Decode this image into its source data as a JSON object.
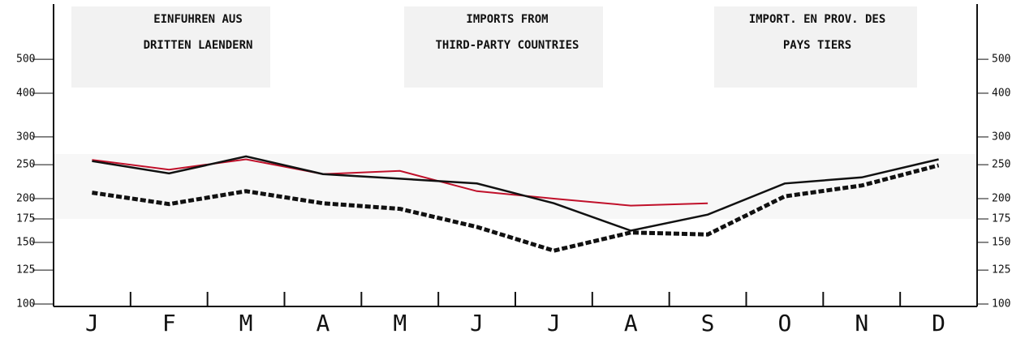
{
  "chart_data": {
    "type": "line",
    "annotations": [
      [
        "EINFUHREN AUS",
        "DRITTEN LAENDERN"
      ],
      [
        "IMPORTS FROM",
        "THIRD-PARTY COUNTRIES"
      ],
      [
        "IMPORT. EN PROV. DES",
        "PAYS TIERS"
      ]
    ],
    "categories": [
      "J",
      "F",
      "M",
      "A",
      "M",
      "J",
      "J",
      "A",
      "S",
      "O",
      "N",
      "D"
    ],
    "series": [
      {
        "color": "#c0102a",
        "style": "solid",
        "values": [
          258,
          242,
          259,
          235,
          240,
          210,
          200,
          191,
          194,
          null,
          null,
          null
        ]
      },
      {
        "color": "#111111",
        "style": "solid",
        "values": [
          256,
          236,
          264,
          235,
          228,
          221,
          194,
          162,
          180,
          221,
          230,
          259
        ]
      },
      {
        "color": "#111111",
        "style": "dotted",
        "values": [
          208,
          193,
          210,
          194,
          187,
          166,
          142,
          160,
          158,
          203,
          218,
          249
        ]
      }
    ],
    "ylim": [
      100,
      700
    ],
    "log_y": true,
    "yticks": [
      100,
      125,
      150,
      175,
      200,
      250,
      300,
      400,
      500
    ]
  }
}
